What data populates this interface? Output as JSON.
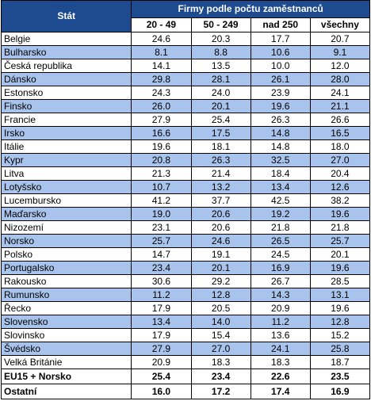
{
  "header": {
    "state": "Stát",
    "firms": "Firmy podle počtu zaměstnanců",
    "columns": [
      "20 - 49",
      "50 - 249",
      "nad 250",
      "všechny"
    ]
  },
  "rows": [
    {
      "name": "Belgie",
      "values": [
        "24.6",
        "20.3",
        "17.7",
        "20.7"
      ]
    },
    {
      "name": "Bulharsko",
      "values": [
        "8.1",
        "8.8",
        "10.6",
        "9.1"
      ]
    },
    {
      "name": "Česká republika",
      "values": [
        "14.1",
        "13.5",
        "10.0",
        "12.0"
      ]
    },
    {
      "name": "Dánsko",
      "values": [
        "29.8",
        "28.1",
        "26.1",
        "28.0"
      ]
    },
    {
      "name": "Estonsko",
      "values": [
        "24.3",
        "24.0",
        "23.9",
        "24.1"
      ]
    },
    {
      "name": "Finsko",
      "values": [
        "26.0",
        "20.1",
        "19.6",
        "21.1"
      ]
    },
    {
      "name": "Francie",
      "values": [
        "27.9",
        "25.4",
        "26.3",
        "26.6"
      ]
    },
    {
      "name": "Irsko",
      "values": [
        "16.6",
        "17.5",
        "14.8",
        "16.5"
      ]
    },
    {
      "name": "Itálie",
      "values": [
        "19.6",
        "18.1",
        "14.8",
        "18.0"
      ]
    },
    {
      "name": "Kypr",
      "values": [
        "20.8",
        "26.3",
        "32.5",
        "27.0"
      ]
    },
    {
      "name": "Litva",
      "values": [
        "21.3",
        "21.4",
        "18.4",
        "20.4"
      ]
    },
    {
      "name": "Lotyšsko",
      "values": [
        "10.7",
        "13.2",
        "13.4",
        "12.6"
      ]
    },
    {
      "name": "Lucembursko",
      "values": [
        "41.2",
        "37.7",
        "42.5",
        "38.2"
      ]
    },
    {
      "name": "Maďarsko",
      "values": [
        "19.0",
        "20.6",
        "19.2",
        "19.6"
      ]
    },
    {
      "name": "Nizozemí",
      "values": [
        "23.1",
        "20.6",
        "21.8",
        "21.8"
      ]
    },
    {
      "name": "Norsko",
      "values": [
        "25.7",
        "24.6",
        "26.5",
        "25.7"
      ]
    },
    {
      "name": "Polsko",
      "values": [
        "14.7",
        "19.1",
        "24.5",
        "20.1"
      ]
    },
    {
      "name": "Portugalsko",
      "values": [
        "23.4",
        "20.1",
        "16.9",
        "19.6"
      ]
    },
    {
      "name": "Rakousko",
      "values": [
        "30.6",
        "29.2",
        "26.7",
        "28.5"
      ]
    },
    {
      "name": "Rumunsko",
      "values": [
        "11.2",
        "12.8",
        "14.3",
        "13.1"
      ]
    },
    {
      "name": "Řecko",
      "values": [
        "17.9",
        "20.5",
        "20.9",
        "19.6"
      ]
    },
    {
      "name": "Slovensko",
      "values": [
        "13.4",
        "14.0",
        "11.2",
        "12.8"
      ]
    },
    {
      "name": "Slovinsko",
      "values": [
        "17.9",
        "15.4",
        "13.6",
        "15.2"
      ]
    },
    {
      "name": "Švédsko",
      "values": [
        "27.9",
        "27.0",
        "24.1",
        "25.8"
      ]
    },
    {
      "name": "Velká Británie",
      "values": [
        "20.9",
        "18.3",
        "18.3",
        "18.7"
      ]
    }
  ],
  "summary": [
    {
      "name": "EU15 + Norsko",
      "values": [
        "25.4",
        "23.4",
        "22.6",
        "23.5"
      ]
    },
    {
      "name": "Ostatní",
      "values": [
        "16.0",
        "17.2",
        "17.4",
        "16.9"
      ]
    }
  ],
  "colors": {
    "header_bg": "#1e4b8f",
    "band": "#a9c4ec",
    "white": "#ffffff"
  }
}
